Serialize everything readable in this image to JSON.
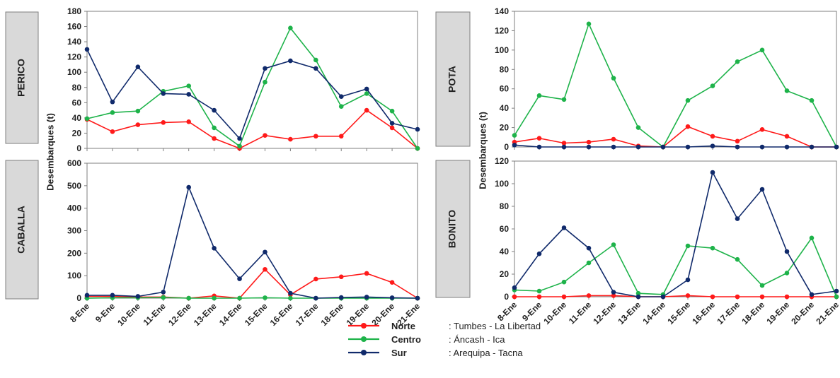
{
  "ylabel": "Desembarques (t)",
  "series_styles": [
    {
      "key": "norte",
      "color": "#ff1a1a"
    },
    {
      "key": "centro",
      "color": "#1eb34a"
    },
    {
      "key": "sur",
      "color": "#102a6b"
    }
  ],
  "legend": [
    {
      "name": "Norte",
      "desc": ": Tumbes - La Libertad",
      "color": "#ff1a1a"
    },
    {
      "name": "Centro",
      "desc": ": Áncash - Ica",
      "color": "#1eb34a"
    },
    {
      "name": "Sur",
      "desc": ": Arequipa - Tacna",
      "color": "#102a6b"
    }
  ],
  "chart_data": [
    {
      "type": "line",
      "species": "PERICO",
      "categories": [
        "8-Ene",
        "9-Ene",
        "10-Ene",
        "11-Ene",
        "12-Ene",
        "13-Ene",
        "14-Ene",
        "15-Ene",
        "16-Ene",
        "17-Ene",
        "18-Ene",
        "19-Ene",
        "20-Ene",
        "21-Ene"
      ],
      "yticks": [
        0,
        20,
        40,
        60,
        80,
        100,
        120,
        140,
        160,
        180
      ],
      "ylim": [
        0,
        180
      ],
      "series": [
        {
          "name": "Norte",
          "values": [
            38,
            22,
            31,
            34,
            35,
            13,
            0,
            17,
            12,
            16,
            16,
            50,
            27,
            0
          ]
        },
        {
          "name": "Centro",
          "values": [
            39,
            47,
            49,
            75,
            82,
            27,
            3,
            87,
            158,
            116,
            55,
            72,
            49,
            0
          ]
        },
        {
          "name": "Sur",
          "values": [
            130,
            61,
            107,
            72,
            71,
            50,
            13,
            105,
            115,
            105,
            68,
            78,
            33,
            25
          ]
        }
      ]
    },
    {
      "type": "line",
      "species": "POTA",
      "categories": [
        "8-Ene",
        "9-Ene",
        "10-Ene",
        "11-Ene",
        "12-Ene",
        "13-Ene",
        "14-Ene",
        "15-Ene",
        "16-Ene",
        "17-Ene",
        "18-Ene",
        "19-Ene",
        "20-Ene",
        "21-Ene"
      ],
      "yticks": [
        0,
        20,
        40,
        60,
        80,
        100,
        120,
        140
      ],
      "ylim": [
        0,
        140
      ],
      "series": [
        {
          "name": "Norte",
          "values": [
            5,
            9,
            4,
            5,
            8,
            1,
            0,
            21,
            11,
            6,
            18,
            11,
            0,
            0
          ]
        },
        {
          "name": "Centro",
          "values": [
            12,
            53,
            49,
            127,
            71,
            20,
            0,
            48,
            63,
            88,
            100,
            58,
            48,
            0
          ]
        },
        {
          "name": "Sur",
          "values": [
            2,
            0,
            0,
            0,
            0,
            0,
            0,
            0,
            1,
            0,
            0,
            0,
            0,
            0
          ]
        }
      ]
    },
    {
      "type": "line",
      "species": "CABALLA",
      "categories": [
        "8-Ene",
        "9-Ene",
        "10-Ene",
        "11-Ene",
        "12-Ene",
        "13-Ene",
        "14-Ene",
        "15-Ene",
        "16-Ene",
        "17-Ene",
        "18-Ene",
        "19-Ene",
        "20-Ene",
        "21-Ene"
      ],
      "yticks": [
        0,
        100,
        200,
        300,
        400,
        500,
        600
      ],
      "ylim": [
        0,
        600
      ],
      "series": [
        {
          "name": "Norte",
          "values": [
            8,
            8,
            5,
            5,
            0,
            10,
            0,
            128,
            15,
            85,
            95,
            110,
            70,
            0
          ]
        },
        {
          "name": "Centro",
          "values": [
            0,
            2,
            2,
            3,
            0,
            0,
            0,
            2,
            0,
            0,
            0,
            0,
            0,
            0
          ]
        },
        {
          "name": "Sur",
          "values": [
            13,
            13,
            8,
            27,
            493,
            222,
            86,
            205,
            22,
            0,
            3,
            5,
            2,
            0
          ]
        }
      ]
    },
    {
      "type": "line",
      "species": "BONITO",
      "categories": [
        "8-Ene",
        "9-Ene",
        "10-Ene",
        "11-Ene",
        "12-Ene",
        "13-Ene",
        "14-Ene",
        "15-Ene",
        "16-Ene",
        "17-Ene",
        "18-Ene",
        "19-Ene",
        "20-Ene",
        "21-Ene"
      ],
      "yticks": [
        0,
        20,
        40,
        60,
        80,
        100,
        120
      ],
      "ylim": [
        0,
        120
      ],
      "series": [
        {
          "name": "Norte",
          "values": [
            0,
            0,
            0,
            1,
            1,
            0,
            0,
            1,
            0,
            0,
            0,
            0,
            0,
            0
          ]
        },
        {
          "name": "Centro",
          "values": [
            6,
            5,
            13,
            30,
            46,
            3,
            2,
            45,
            43,
            33,
            10,
            21,
            52,
            0
          ]
        },
        {
          "name": "Sur",
          "values": [
            8,
            38,
            61,
            43,
            4,
            0,
            0,
            15,
            110,
            69,
            95,
            40,
            2,
            5
          ]
        }
      ]
    }
  ]
}
